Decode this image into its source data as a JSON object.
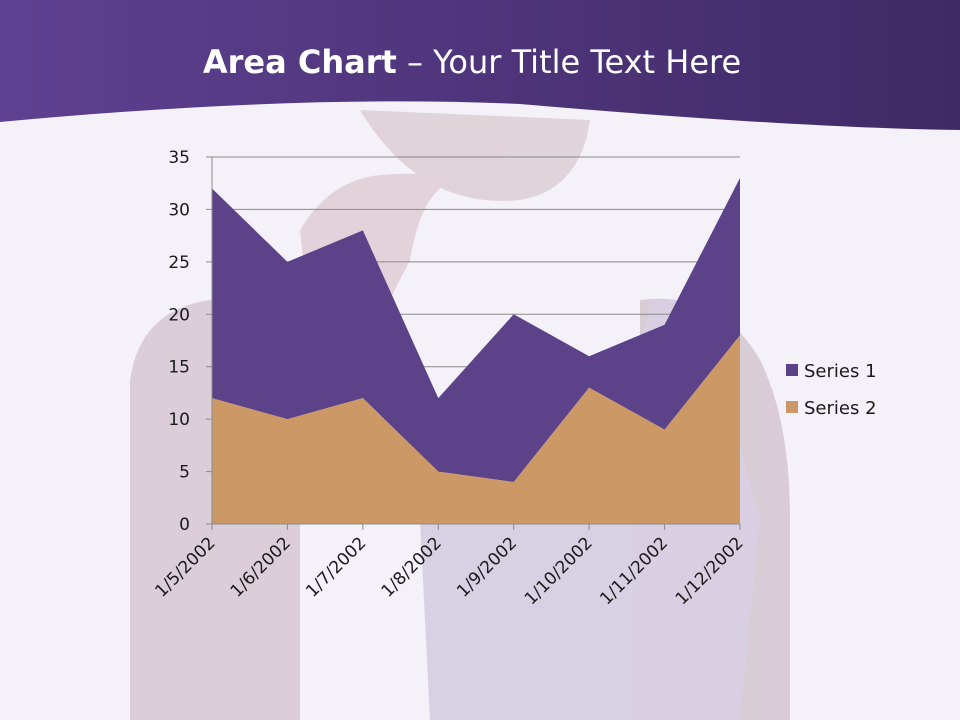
{
  "slide": {
    "title_bold": "Area Chart",
    "title_rest": " – Your Title Text Here",
    "colors": {
      "header": "#5a3d8a",
      "background": "#f4f1f8"
    }
  },
  "chart_data": {
    "type": "area",
    "stacked": true,
    "categories": [
      "1/5/2002",
      "1/6/2002",
      "1/7/2002",
      "1/8/2002",
      "1/9/2002",
      "1/10/2002",
      "1/11/2002",
      "1/12/2002"
    ],
    "series": [
      {
        "name": "Series 1",
        "values": [
          20,
          15,
          16,
          7,
          16,
          3,
          10,
          15
        ],
        "color": "#5b4289"
      },
      {
        "name": "Series 2",
        "values": [
          12,
          10,
          12,
          5,
          4,
          13,
          9,
          18
        ],
        "color": "#cc9966"
      }
    ],
    "y_ticks": [
      0,
      5,
      10,
      15,
      20,
      25,
      30,
      35
    ],
    "ylim": [
      0,
      35
    ],
    "grid": true,
    "legend_position": "right"
  }
}
